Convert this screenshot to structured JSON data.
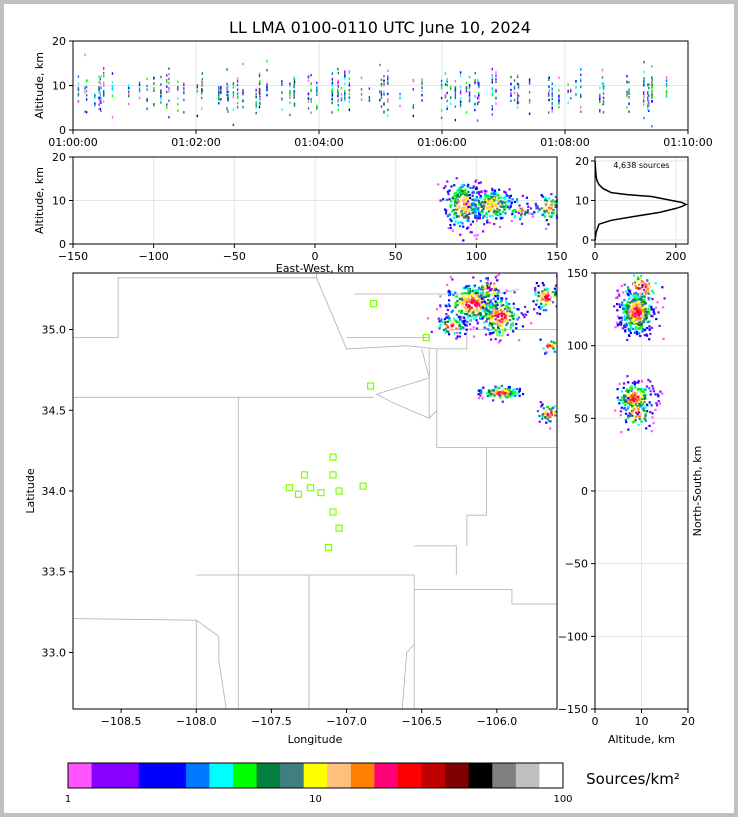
{
  "title": "LL LMA 0100-0110 UTC June 10, 2024",
  "colors": {
    "colorbar": [
      "#ff55ff",
      "#8800ff",
      "#8800ff",
      "#0000ff",
      "#0000ff",
      "#0077ff",
      "#00ffff",
      "#00ff00",
      "#007f3f",
      "#3f7f7f",
      "#ffff00",
      "#ffbf7f",
      "#ff7f00",
      "#ff0077",
      "#ff0000",
      "#bf0000",
      "#7f0000",
      "#000000",
      "#7f7f7f",
      "#bfbfbf",
      "#ffffff"
    ],
    "station": "#7fff00",
    "border": "#b0b0b0"
  },
  "chart_data": [
    {
      "name": "altitude-time",
      "type": "scatter",
      "ylabel": "Altitude, km",
      "xlim": [
        "01:00:00",
        "01:10:00"
      ],
      "ylim": [
        0,
        20
      ],
      "xticks": [
        "01:00:00",
        "01:02:00",
        "01:04:00",
        "01:06:00",
        "01:08:00",
        "01:10:00"
      ],
      "yticks": [
        0,
        10,
        20
      ]
    },
    {
      "name": "altitude-eastwest",
      "type": "heatmap",
      "xlabel": "East-West, km",
      "ylabel": "Altitude, km",
      "xlim": [
        -150,
        150
      ],
      "ylim": [
        0,
        20
      ],
      "xticks": [
        -150,
        -100,
        -50,
        0,
        50,
        100,
        150
      ],
      "yticks": [
        0,
        10,
        20
      ]
    },
    {
      "name": "altitude-histogram",
      "type": "line",
      "annotation": "4,638 sources",
      "xlim": [
        0,
        230
      ],
      "ylim": [
        -1,
        21
      ],
      "xticks": [
        0,
        200
      ],
      "yticks": [
        0,
        10,
        20
      ],
      "x": [
        0,
        3,
        10,
        40,
        100,
        160,
        200,
        215,
        225,
        215,
        190,
        140,
        80,
        40,
        20,
        10,
        5,
        3,
        2,
        0
      ],
      "y": [
        0,
        2,
        4,
        5,
        6,
        7,
        8,
        8.5,
        9,
        9.5,
        10,
        11,
        11.5,
        12,
        13,
        14,
        15,
        16,
        17,
        20
      ]
    },
    {
      "name": "plan-view",
      "type": "heatmap",
      "xlabel": "Longitude",
      "ylabel": "Latitude",
      "xlim": [
        -108.82,
        -105.6
      ],
      "ylim": [
        32.65,
        35.35
      ],
      "xticks": [
        -108.5,
        -108.0,
        -107.5,
        -107.0,
        -106.5,
        -106.0
      ],
      "yticks": [
        33.0,
        33.5,
        34.0,
        34.5,
        35.0
      ],
      "xtick_labels": [
        "−108.5",
        "−108.0",
        "−107.5",
        "−107.0",
        "−106.5",
        "−106.0"
      ],
      "ytick_labels": [
        "33.0",
        "33.5",
        "34.0",
        "34.5",
        "35.0"
      ],
      "stations": [
        [
          -106.82,
          35.16
        ],
        [
          -106.47,
          34.95
        ],
        [
          -105.98,
          34.98
        ],
        [
          -106.84,
          34.65
        ],
        [
          -107.09,
          34.21
        ],
        [
          -107.28,
          34.1
        ],
        [
          -107.09,
          34.1
        ],
        [
          -107.38,
          34.02
        ],
        [
          -107.24,
          34.02
        ],
        [
          -107.32,
          33.98
        ],
        [
          -107.17,
          33.99
        ],
        [
          -107.05,
          34.0
        ],
        [
          -106.89,
          34.03
        ],
        [
          -107.09,
          33.87
        ],
        [
          -107.05,
          33.77
        ],
        [
          -107.12,
          33.65
        ]
      ]
    },
    {
      "name": "altitude-northsouth",
      "type": "heatmap",
      "xlabel": "Altitude, km",
      "ylabel": "North-South, km",
      "xlim": [
        0,
        20
      ],
      "ylim": [
        -150,
        150
      ],
      "xticks": [
        0,
        10,
        20
      ],
      "yticks": [
        -150,
        -100,
        -50,
        0,
        50,
        100,
        150
      ]
    },
    {
      "name": "colorbar",
      "type": "bar",
      "label": "Sources/km²",
      "range": [
        1,
        100
      ],
      "scale": "log",
      "ticks": [
        1,
        10,
        100
      ]
    }
  ]
}
